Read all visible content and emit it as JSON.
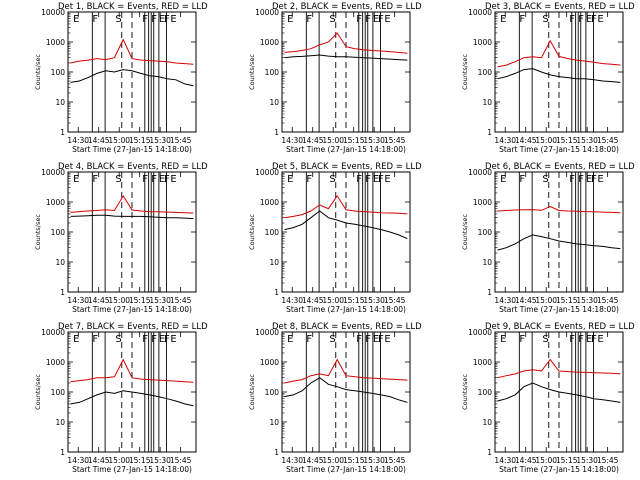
{
  "chart_data": [
    {
      "type": "line",
      "title": "Det 1",
      "title_mid": "BLACK = Events, RED = LLD",
      "xlabel": "Start Time (27-Jan-15 14:18:00)",
      "ylabel": "Counts/sec",
      "x_ticks": [
        "14:30",
        "14:45",
        "15:00",
        "15:15",
        "15:30",
        "15:45"
      ],
      "y_ticks": [
        "1",
        "10",
        "100",
        "1000",
        "10000"
      ],
      "markers": [
        "E",
        "F",
        "S",
        "F",
        "F",
        "E",
        "F",
        "E"
      ],
      "scale": "log",
      "ylim": [
        1,
        10000
      ],
      "series": [
        {
          "name": "BLACK = Events",
          "color": "#000000",
          "values": [
            45,
            50,
            65,
            90,
            110,
            100,
            120,
            110,
            90,
            75,
            70,
            60,
            55,
            40,
            35
          ]
        },
        {
          "name": "RED = LLD",
          "color": "#d40000",
          "values": [
            200,
            230,
            250,
            280,
            260,
            300,
            1200,
            280,
            250,
            240,
            230,
            220,
            200,
            190,
            180
          ]
        }
      ]
    },
    {
      "type": "line",
      "title": "Det 2",
      "title_mid": "BLACK = Events, RED = LLD",
      "xlabel": "Start Time (27-Jan-15 14:18:00)",
      "ylabel": "Counts/sec",
      "x_ticks": [
        "14:30",
        "14:45",
        "15:00",
        "15:15",
        "15:30",
        "15:45"
      ],
      "y_ticks": [
        "1",
        "10",
        "100",
        "1000",
        "10000"
      ],
      "markers": [
        "E",
        "F",
        "S",
        "F",
        "F",
        "E",
        "F",
        "E"
      ],
      "scale": "log",
      "ylim": [
        1,
        10000
      ],
      "series": [
        {
          "name": "BLACK = Events",
          "color": "#000000",
          "values": [
            300,
            320,
            330,
            350,
            370,
            340,
            320,
            320,
            310,
            300,
            290,
            280,
            270,
            260,
            250
          ]
        },
        {
          "name": "RED = LLD",
          "color": "#d40000",
          "values": [
            450,
            480,
            520,
            600,
            800,
            1000,
            2000,
            700,
            600,
            550,
            520,
            500,
            480,
            450,
            420
          ]
        }
      ]
    },
    {
      "type": "line",
      "title": "Det 3",
      "title_mid": "BLACK = Events, RED = LLD",
      "xlabel": "Start Time (27-Jan-15 14:18:00)",
      "ylabel": "Counts/sec",
      "x_ticks": [
        "14:30",
        "14:45",
        "15:00",
        "15:15",
        "15:30",
        "15:45"
      ],
      "y_ticks": [
        "1",
        "10",
        "100",
        "1000",
        "10000"
      ],
      "markers": [
        "E",
        "F",
        "S",
        "F",
        "F",
        "E",
        "F",
        "E"
      ],
      "scale": "log",
      "ylim": [
        1,
        10000
      ],
      "series": [
        {
          "name": "BLACK = Events",
          "color": "#000000",
          "values": [
            60,
            70,
            90,
            120,
            130,
            100,
            80,
            70,
            65,
            60,
            60,
            55,
            50,
            48,
            45
          ]
        },
        {
          "name": "RED = LLD",
          "color": "#d40000",
          "values": [
            150,
            170,
            220,
            300,
            320,
            300,
            1100,
            330,
            280,
            250,
            230,
            210,
            190,
            180,
            170
          ]
        }
      ]
    },
    {
      "type": "line",
      "title": "Det 4",
      "title_mid": "BLACK = Events, RED = LLD",
      "xlabel": "Start Time (27-Jan-15 14:18:00)",
      "ylabel": "Counts/sec",
      "x_ticks": [
        "14:30",
        "14:45",
        "15:00",
        "15:15",
        "15:30",
        "15:45"
      ],
      "y_ticks": [
        "1",
        "10",
        "100",
        "1000",
        "10000"
      ],
      "markers": [
        "E",
        "F",
        "S",
        "F",
        "F",
        "E",
        "F",
        "E"
      ],
      "scale": "log",
      "ylim": [
        1,
        10000
      ],
      "series": [
        {
          "name": "BLACK = Events",
          "color": "#000000",
          "values": [
            330,
            340,
            350,
            360,
            360,
            340,
            330,
            330,
            330,
            320,
            310,
            300,
            300,
            290,
            280
          ]
        },
        {
          "name": "RED = LLD",
          "color": "#d40000",
          "values": [
            450,
            480,
            500,
            520,
            550,
            520,
            1600,
            540,
            500,
            480,
            470,
            460,
            450,
            440,
            430
          ]
        }
      ]
    },
    {
      "type": "line",
      "title": "Det 5",
      "title_mid": "BLACK = Events, RED = LLD",
      "xlabel": "Start Time (27-Jan-15 14:18:00)",
      "ylabel": "Counts/sec",
      "x_ticks": [
        "14:30",
        "14:45",
        "15:00",
        "15:15",
        "15:30",
        "15:45"
      ],
      "y_ticks": [
        "1",
        "10",
        "100",
        "1000",
        "10000"
      ],
      "markers": [
        "E",
        "F",
        "S",
        "F",
        "F",
        "E",
        "F",
        "E"
      ],
      "scale": "log",
      "ylim": [
        1,
        10000
      ],
      "series": [
        {
          "name": "BLACK = Events",
          "color": "#000000",
          "values": [
            120,
            140,
            180,
            300,
            500,
            300,
            250,
            200,
            180,
            160,
            140,
            120,
            100,
            80,
            60
          ]
        },
        {
          "name": "RED = LLD",
          "color": "#d40000",
          "values": [
            300,
            330,
            380,
            500,
            800,
            600,
            1600,
            550,
            500,
            480,
            460,
            440,
            430,
            420,
            400
          ]
        }
      ]
    },
    {
      "type": "line",
      "title": "Det 6",
      "title_mid": "BLACK = Events, RED = LLD",
      "xlabel": "Start Time (27-Jan-15 14:18:00)",
      "ylabel": "Counts/sec",
      "x_ticks": [
        "14:30",
        "14:45",
        "15:00",
        "15:15",
        "15:30",
        "15:45"
      ],
      "y_ticks": [
        "1",
        "10",
        "100",
        "1000",
        "10000"
      ],
      "markers": [
        "E",
        "F",
        "S",
        "F",
        "F",
        "E",
        "F",
        "E"
      ],
      "scale": "log",
      "ylim": [
        1,
        10000
      ],
      "series": [
        {
          "name": "BLACK = Events",
          "color": "#000000",
          "values": [
            25,
            30,
            40,
            60,
            80,
            70,
            60,
            50,
            45,
            40,
            38,
            35,
            33,
            30,
            28
          ]
        },
        {
          "name": "RED = LLD",
          "color": "#d40000",
          "values": [
            500,
            520,
            540,
            550,
            560,
            530,
            700,
            520,
            500,
            490,
            480,
            470,
            460,
            450,
            440
          ]
        }
      ]
    },
    {
      "type": "line",
      "title": "Det 7",
      "title_mid": "BLACK = Events, RED = LLD",
      "xlabel": "Start Time (27-Jan-15 14:18:00)",
      "ylabel": "Counts/sec",
      "x_ticks": [
        "14:30",
        "14:45",
        "15:00",
        "15:15",
        "15:30",
        "15:45"
      ],
      "y_ticks": [
        "1",
        "10",
        "100",
        "1000",
        "10000"
      ],
      "markers": [
        "E",
        "F",
        "S",
        "F",
        "F",
        "E",
        "F",
        "E"
      ],
      "scale": "log",
      "ylim": [
        1,
        10000
      ],
      "series": [
        {
          "name": "BLACK = Events",
          "color": "#000000",
          "values": [
            40,
            45,
            60,
            80,
            100,
            90,
            110,
            100,
            90,
            80,
            70,
            60,
            50,
            40,
            35
          ]
        },
        {
          "name": "RED = LLD",
          "color": "#d40000",
          "values": [
            220,
            240,
            260,
            300,
            300,
            320,
            1200,
            300,
            270,
            260,
            250,
            240,
            230,
            220,
            210
          ]
        }
      ]
    },
    {
      "type": "line",
      "title": "Det 8",
      "title_mid": "BLACK = Events, RED = LLD",
      "xlabel": "Start Time (27-Jan-15 14:18:00)",
      "ylabel": "Counts/sec",
      "x_ticks": [
        "14:30",
        "14:45",
        "15:00",
        "15:15",
        "15:30",
        "15:45"
      ],
      "y_ticks": [
        "1",
        "10",
        "100",
        "1000",
        "10000"
      ],
      "markers": [
        "E",
        "F",
        "S",
        "F",
        "F",
        "E",
        "F",
        "E"
      ],
      "scale": "log",
      "ylim": [
        1,
        10000
      ],
      "series": [
        {
          "name": "BLACK = Events",
          "color": "#000000",
          "values": [
            70,
            80,
            110,
            200,
            300,
            180,
            150,
            120,
            110,
            100,
            90,
            80,
            70,
            55,
            45
          ]
        },
        {
          "name": "RED = LLD",
          "color": "#d40000",
          "values": [
            200,
            230,
            260,
            350,
            400,
            350,
            1200,
            350,
            320,
            300,
            290,
            280,
            270,
            260,
            250
          ]
        }
      ]
    },
    {
      "type": "line",
      "title": "Det 9",
      "title_mid": "BLACK = Events, RED = LLD",
      "xlabel": "Start Time (27-Jan-15 14:18:00)",
      "ylabel": "Counts/sec",
      "x_ticks": [
        "14:30",
        "14:45",
        "15:00",
        "15:15",
        "15:30",
        "15:45"
      ],
      "y_ticks": [
        "1",
        "10",
        "100",
        "1000",
        "10000"
      ],
      "markers": [
        "E",
        "F",
        "S",
        "F",
        "F",
        "E",
        "F",
        "E"
      ],
      "scale": "log",
      "ylim": [
        1,
        10000
      ],
      "series": [
        {
          "name": "BLACK = Events",
          "color": "#000000",
          "values": [
            50,
            60,
            80,
            150,
            200,
            150,
            120,
            100,
            90,
            80,
            70,
            60,
            55,
            50,
            45
          ]
        },
        {
          "name": "RED = LLD",
          "color": "#d40000",
          "values": [
            300,
            350,
            400,
            500,
            550,
            500,
            1200,
            500,
            480,
            460,
            450,
            440,
            430,
            420,
            400
          ]
        }
      ]
    }
  ]
}
